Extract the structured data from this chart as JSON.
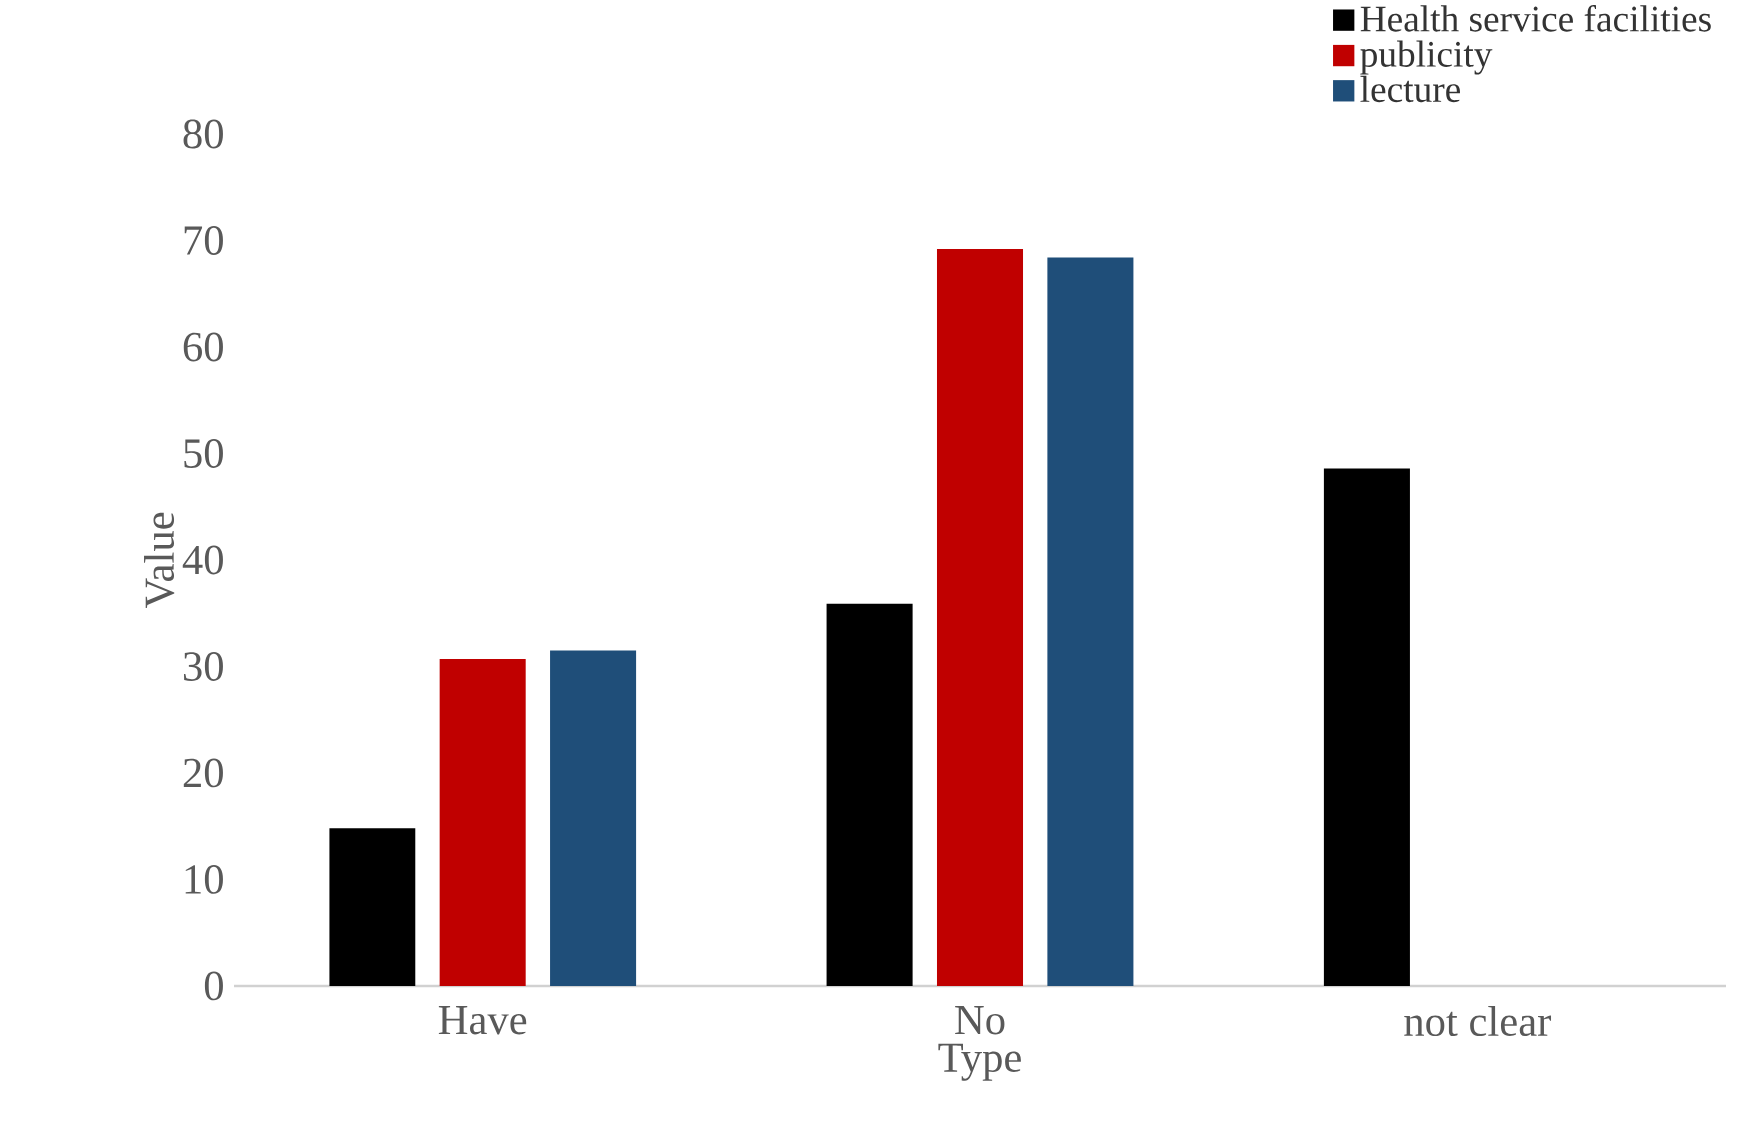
{
  "chart_data": {
    "type": "bar",
    "xlabel": "Type",
    "ylabel": "Value",
    "categories": [
      "Have",
      "No",
      "not clear"
    ],
    "series": [
      {
        "name": "Health service facilities",
        "color": "#000000",
        "values": [
          14.8,
          35.9,
          48.6
        ]
      },
      {
        "name": "publicity",
        "color": "#c00000",
        "values": [
          30.7,
          69.2,
          null
        ]
      },
      {
        "name": "lecture",
        "color": "#1f4e79",
        "values": [
          31.5,
          68.4,
          null
        ]
      }
    ],
    "ylim": [
      0,
      80
    ],
    "yticks": [
      0,
      10,
      20,
      30,
      40,
      50,
      60,
      70,
      80
    ],
    "legend": "top right"
  }
}
